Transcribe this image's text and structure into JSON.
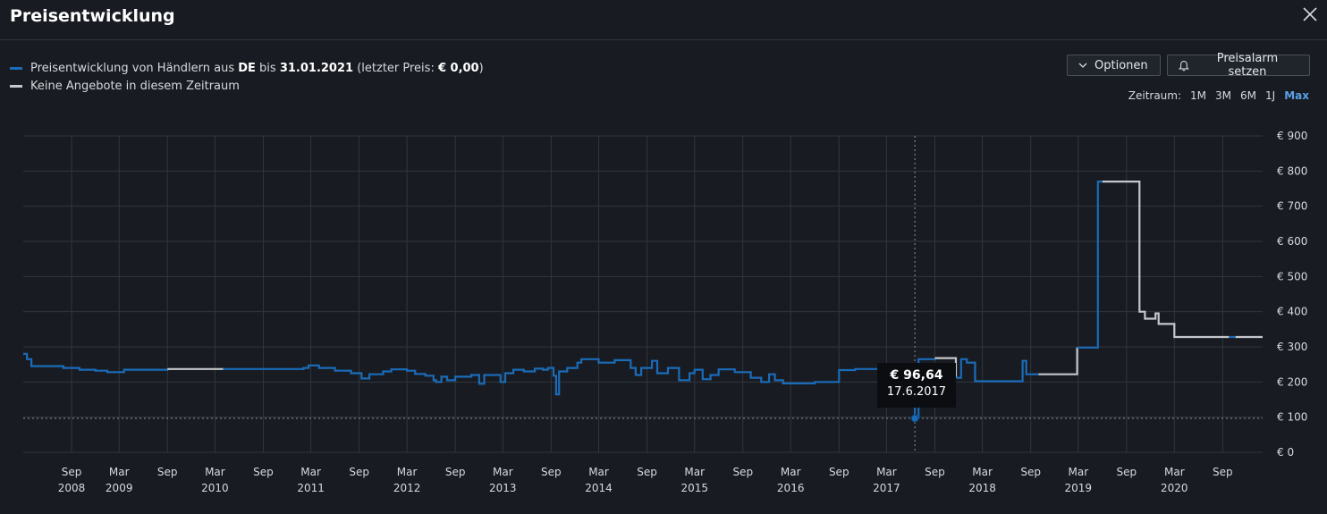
{
  "header": {
    "title": "Preisentwicklung"
  },
  "legend": {
    "row1_prefix": "Preisentwicklung von Händlern aus ",
    "row1_country": "DE",
    "row1_mid": " bis ",
    "row1_date": "31.01.2021",
    "row1_suffix_open": " (letzter Preis: ",
    "row1_last_price": "€ 0,00",
    "row1_suffix_close": ")",
    "row2": "Keine Angebote in diesem Zeitraum"
  },
  "buttons": {
    "options": "Optionen",
    "alarm": "Preisalarm setzen"
  },
  "range": {
    "label": "Zeitraum:",
    "options": [
      "1M",
      "3M",
      "6M",
      "1J",
      "Max"
    ],
    "active": "Max"
  },
  "colors": {
    "offers": "#1a6bb8",
    "no_offers": "#c4c7cb",
    "background": "#181c22",
    "grid": "#31363d"
  },
  "icons": {
    "close": "close-icon",
    "options": "chevron-down-icon",
    "alarm": "bell-icon"
  },
  "tooltip": {
    "price": "€ 96,64",
    "date": "17.6.2017"
  },
  "chart_data": {
    "type": "line",
    "title": "",
    "xlabel": "",
    "ylabel": "",
    "ylim": [
      0,
      900
    ],
    "y_ticks": [
      0,
      100,
      200,
      300,
      400,
      500,
      600,
      700,
      800,
      900
    ],
    "y_tick_labels": [
      "€ 0",
      "€ 100",
      "€ 200",
      "€ 300",
      "€ 400",
      "€ 500",
      "€ 600",
      "€ 700",
      "€ 800",
      "€ 900"
    ],
    "xlim": [
      "2008-03-01",
      "2021-01-31"
    ],
    "x_ticks": [
      {
        "month": "Sep",
        "year": "2008",
        "date": "2008-09-01"
      },
      {
        "month": "Mar",
        "year": "2009",
        "date": "2009-03-01"
      },
      {
        "month": "Sep",
        "year": "",
        "date": "2009-09-01"
      },
      {
        "month": "Mar",
        "year": "2010",
        "date": "2010-03-01"
      },
      {
        "month": "Sep",
        "year": "",
        "date": "2010-09-01"
      },
      {
        "month": "Mar",
        "year": "2011",
        "date": "2011-03-01"
      },
      {
        "month": "Sep",
        "year": "",
        "date": "2011-09-01"
      },
      {
        "month": "Mar",
        "year": "2012",
        "date": "2012-03-01"
      },
      {
        "month": "Sep",
        "year": "",
        "date": "2012-09-01"
      },
      {
        "month": "Mar",
        "year": "2013",
        "date": "2013-03-01"
      },
      {
        "month": "Sep",
        "year": "",
        "date": "2013-09-01"
      },
      {
        "month": "Mar",
        "year": "2014",
        "date": "2014-03-01"
      },
      {
        "month": "Sep",
        "year": "",
        "date": "2014-09-01"
      },
      {
        "month": "Mar",
        "year": "2015",
        "date": "2015-03-01"
      },
      {
        "month": "Sep",
        "year": "",
        "date": "2015-09-01"
      },
      {
        "month": "Mar",
        "year": "2016",
        "date": "2016-03-01"
      },
      {
        "month": "Sep",
        "year": "",
        "date": "2016-09-01"
      },
      {
        "month": "Mar",
        "year": "2017",
        "date": "2017-03-01"
      },
      {
        "month": "Sep",
        "year": "",
        "date": "2017-09-01"
      },
      {
        "month": "Mar",
        "year": "2018",
        "date": "2018-03-01"
      },
      {
        "month": "Sep",
        "year": "",
        "date": "2018-09-01"
      },
      {
        "month": "Mar",
        "year": "2019",
        "date": "2019-03-01"
      },
      {
        "month": "Sep",
        "year": "",
        "date": "2019-09-01"
      },
      {
        "month": "Mar",
        "year": "2020",
        "date": "2020-03-01"
      },
      {
        "month": "Sep",
        "year": "",
        "date": "2020-09-01"
      }
    ],
    "grid": true,
    "legend_position": "top-left",
    "series": [
      {
        "name": "Preisentwicklung von Händlern aus DE",
        "color": "#1a6bb8",
        "points": [
          [
            "2008-03-01",
            280
          ],
          [
            "2008-03-15",
            265
          ],
          [
            "2008-04-01",
            245
          ],
          [
            "2008-08-01",
            240
          ],
          [
            "2008-10-01",
            235
          ],
          [
            "2008-12-01",
            232
          ],
          [
            "2009-01-15",
            228
          ],
          [
            "2009-03-20",
            235
          ],
          [
            "2009-09-01",
            237
          ]
        ]
      },
      {
        "name": "Keine Angebote in diesem Zeitraum",
        "color": "#c4c7cb",
        "points": [
          [
            "2009-09-01",
            237
          ],
          [
            "2010-04-01",
            237
          ]
        ]
      },
      {
        "name": "Preisentwicklung von Händlern aus DE",
        "color": "#1a6bb8",
        "points": [
          [
            "2010-04-01",
            237
          ],
          [
            "2010-11-01",
            237
          ],
          [
            "2011-02-01",
            240
          ],
          [
            "2011-02-20",
            247
          ],
          [
            "2011-04-01",
            240
          ],
          [
            "2011-06-01",
            232
          ],
          [
            "2011-08-01",
            225
          ],
          [
            "2011-09-10",
            210
          ],
          [
            "2011-10-10",
            222
          ],
          [
            "2011-12-01",
            230
          ],
          [
            "2012-01-01",
            236
          ],
          [
            "2012-03-01",
            232
          ],
          [
            "2012-04-01",
            223
          ],
          [
            "2012-05-10",
            218
          ],
          [
            "2012-06-10",
            205
          ],
          [
            "2012-06-20",
            200
          ],
          [
            "2012-07-10",
            215
          ],
          [
            "2012-08-01",
            205
          ],
          [
            "2012-09-01",
            215
          ],
          [
            "2012-11-01",
            220
          ],
          [
            "2012-12-01",
            195
          ],
          [
            "2012-12-20",
            220
          ],
          [
            "2013-02-01",
            220
          ],
          [
            "2013-02-20",
            200
          ],
          [
            "2013-03-10",
            225
          ],
          [
            "2013-04-10",
            235
          ],
          [
            "2013-05-20",
            230
          ],
          [
            "2013-07-01",
            238
          ],
          [
            "2013-08-01",
            235
          ],
          [
            "2013-08-20",
            240
          ],
          [
            "2013-09-10",
            218
          ],
          [
            "2013-09-20",
            165
          ],
          [
            "2013-10-01",
            230
          ],
          [
            "2013-11-01",
            240
          ],
          [
            "2013-12-10",
            255
          ],
          [
            "2013-12-25",
            265
          ],
          [
            "2014-03-01",
            255
          ],
          [
            "2014-05-01",
            262
          ],
          [
            "2014-07-01",
            240
          ],
          [
            "2014-07-20",
            220
          ],
          [
            "2014-08-10",
            240
          ],
          [
            "2014-09-20",
            260
          ],
          [
            "2014-10-10",
            225
          ],
          [
            "2014-11-20",
            240
          ],
          [
            "2015-01-01",
            205
          ],
          [
            "2015-02-10",
            225
          ],
          [
            "2015-03-01",
            235
          ],
          [
            "2015-04-01",
            208
          ],
          [
            "2015-05-01",
            220
          ],
          [
            "2015-06-01",
            236
          ],
          [
            "2015-08-01",
            228
          ],
          [
            "2015-10-01",
            212
          ],
          [
            "2015-11-10",
            200
          ],
          [
            "2015-12-10",
            222
          ],
          [
            "2016-01-01",
            205
          ],
          [
            "2016-02-01",
            196
          ],
          [
            "2016-06-01",
            200
          ],
          [
            "2016-09-01",
            234
          ],
          [
            "2016-11-01",
            237
          ],
          [
            "2017-05-01",
            237
          ],
          [
            "2017-06-17",
            97
          ],
          [
            "2017-07-01",
            265
          ],
          [
            "2017-09-01",
            268
          ]
        ]
      },
      {
        "name": "Keine Angebote in diesem Zeitraum",
        "color": "#c4c7cb",
        "points": [
          [
            "2017-09-01",
            268
          ],
          [
            "2017-11-10",
            268
          ],
          [
            "2017-11-20",
            212
          ]
        ]
      },
      {
        "name": "Preisentwicklung von Händlern aus DE",
        "color": "#1a6bb8",
        "points": [
          [
            "2017-11-20",
            212
          ],
          [
            "2017-12-10",
            265
          ],
          [
            "2018-01-01",
            255
          ],
          [
            "2018-02-01",
            202
          ],
          [
            "2018-07-20",
            202
          ],
          [
            "2018-08-01",
            260
          ],
          [
            "2018-08-15",
            222
          ],
          [
            "2018-10-01",
            222
          ]
        ]
      },
      {
        "name": "Keine Angebote in diesem Zeitraum",
        "color": "#c4c7cb",
        "points": [
          [
            "2018-10-01",
            222
          ],
          [
            "2019-02-20",
            222
          ],
          [
            "2019-02-25",
            298
          ]
        ]
      },
      {
        "name": "Preisentwicklung von Händlern aus DE",
        "color": "#1a6bb8",
        "points": [
          [
            "2019-02-25",
            298
          ],
          [
            "2019-05-10",
            298
          ],
          [
            "2019-05-15",
            770
          ],
          [
            "2019-06-01",
            770
          ]
        ]
      },
      {
        "name": "Keine Angebote in diesem Zeitraum",
        "color": "#c4c7cb",
        "points": [
          [
            "2019-06-01",
            770
          ],
          [
            "2019-10-01",
            770
          ],
          [
            "2019-10-20",
            400
          ],
          [
            "2019-11-10",
            380
          ],
          [
            "2019-12-20",
            395
          ],
          [
            "2020-01-01",
            365
          ],
          [
            "2020-02-10",
            365
          ],
          [
            "2020-03-01",
            328
          ],
          [
            "2020-09-25",
            328
          ]
        ]
      },
      {
        "name": "Preisentwicklung von Händlern aus DE",
        "color": "#1a6bb8",
        "points": [
          [
            "2020-09-25",
            328
          ],
          [
            "2020-10-20",
            328
          ]
        ]
      },
      {
        "name": "Keine Angebote in diesem Zeitraum",
        "color": "#c4c7cb",
        "points": [
          [
            "2020-10-20",
            328
          ],
          [
            "2021-01-31",
            328
          ]
        ]
      }
    ],
    "annotations": [
      {
        "type": "marker",
        "x": "2017-06-17",
        "y": 96.64,
        "label_price": "€ 96,64",
        "label_date": "17.6.2017"
      }
    ]
  }
}
